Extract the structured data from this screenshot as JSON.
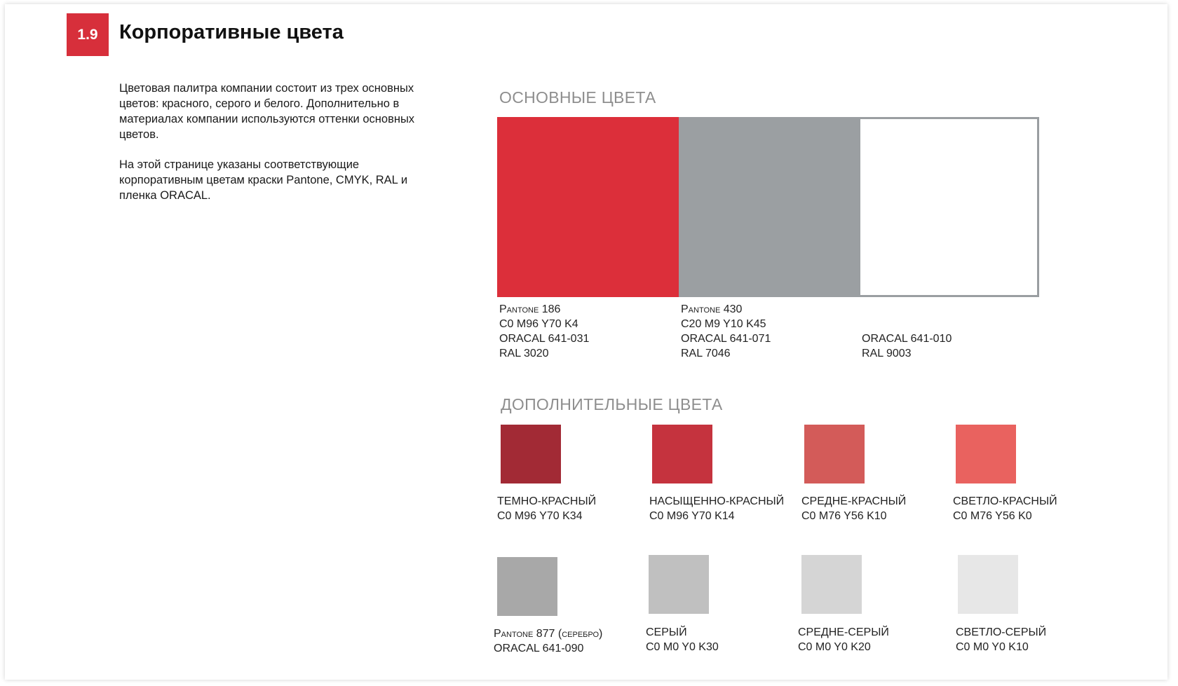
{
  "section": {
    "number": "1.9",
    "title": "Корпоративные цвета"
  },
  "intro": {
    "paragraph1": "Цветовая палитра компании состоит из трех основных цветов: красного, серого и белого. Дополнительно в материалах компании используются оттенки основных цветов.",
    "paragraph2": "На этой странице указаны соответствующие корпоративным цветам краски Pantone, CMYK, RAL и пленка ORACAL."
  },
  "primary": {
    "heading": "ОСНОВНЫЕ ЦВЕТА",
    "colors": [
      {
        "swatch": "#dc2f3a",
        "pantone": "Pantone 186",
        "cmyk": "C0 M96 Y70 K4",
        "oracal": "ORACAL 641-031",
        "ral": "RAL 3020"
      },
      {
        "swatch": "#9b9fa2",
        "pantone": "Pantone 430",
        "cmyk": "C20 M9 Y10 K45",
        "oracal": "ORACAL 641-071",
        "ral": "RAL 7046"
      },
      {
        "swatch": "#ffffff",
        "oracal": "ORACAL 641-010",
        "ral": "RAL 9003"
      }
    ]
  },
  "secondary": {
    "heading": "ДОПОЛНИТЕЛЬНЫЕ  ЦВЕТА",
    "reds": [
      {
        "swatch": "#a22a35",
        "name": "ТЕМНО-КРАСНЫЙ",
        "code": "C0 M96 Y70 K34"
      },
      {
        "swatch": "#c5333e",
        "name": "НАСЫЩЕННО-КРАСНЫЙ",
        "code": "C0 M96 Y70 K14"
      },
      {
        "swatch": "#d35b59",
        "name": "СРЕДНЕ-КРАСНЫЙ",
        "code": "C0 M76 Y56 K10"
      },
      {
        "swatch": "#e9625f",
        "name": "СВЕТЛО-КРАСНЫЙ",
        "code": "C0 M76 Y56 K0"
      }
    ],
    "greys": [
      {
        "swatch": "#a8a8a8",
        "name": "Pantone 877 (серебро)",
        "code": "ORACAL 641-090"
      },
      {
        "swatch": "#c0c0c0",
        "name": "СЕРЫЙ",
        "code": "C0 M0 Y0 K30"
      },
      {
        "swatch": "#d5d5d5",
        "name": "СРЕДНЕ-СЕРЫЙ",
        "code": "C0 M0 Y0 K20"
      },
      {
        "swatch": "#e7e7e7",
        "name": "СВЕТЛО-СЕРЫЙ",
        "code": "C0 M0 Y0 K10"
      }
    ]
  }
}
